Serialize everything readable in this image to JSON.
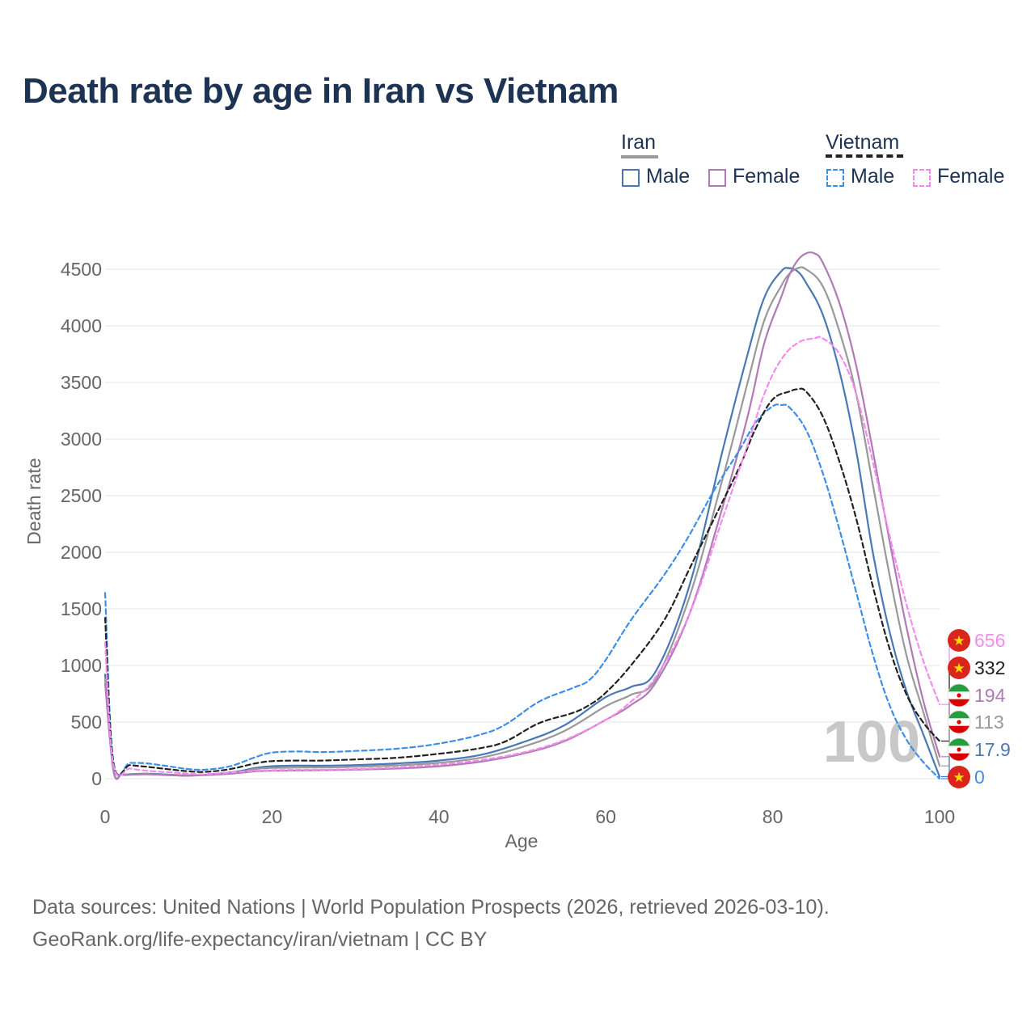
{
  "title": "Death rate by age in Iran vs Vietnam",
  "legend": {
    "groups": [
      {
        "name": "Iran",
        "line_color": "#999999",
        "dashed": false
      },
      {
        "name": "Vietnam",
        "line_color": "#222222",
        "dashed": true
      }
    ],
    "items": [
      {
        "label": "Male",
        "group": "Iran",
        "color": "#4a78b5",
        "dashed": false
      },
      {
        "label": "Female",
        "group": "Iran",
        "color": "#b07ab5",
        "dashed": false
      },
      {
        "label": "Male",
        "group": "Vietnam",
        "color": "#3d8fe6",
        "dashed": true
      },
      {
        "label": "Female",
        "group": "Vietnam",
        "color": "#f48cf0",
        "dashed": true
      }
    ]
  },
  "chart_data": {
    "type": "line",
    "title": "Death rate by age in Iran vs Vietnam",
    "xlabel": "Age",
    "ylabel": "Death rate",
    "xlim": [
      0,
      100
    ],
    "ylim": [
      0,
      4700
    ],
    "xticks": [
      0,
      20,
      40,
      60,
      80,
      100
    ],
    "yticks": [
      0,
      500,
      1000,
      1500,
      2000,
      2500,
      3000,
      3500,
      4000,
      4500
    ],
    "grid": true,
    "watermark": "100",
    "series": [
      {
        "name": "Iran Male",
        "color": "#4a78b5",
        "dashed": false,
        "width": 2.2,
        "points": [
          [
            0,
            920
          ],
          [
            1,
            80
          ],
          [
            2,
            40
          ],
          [
            3,
            40
          ],
          [
            5,
            45
          ],
          [
            8,
            35
          ],
          [
            10,
            30
          ],
          [
            13,
            40
          ],
          [
            16,
            65
          ],
          [
            18,
            95
          ],
          [
            20,
            110
          ],
          [
            23,
            115
          ],
          [
            26,
            115
          ],
          [
            30,
            120
          ],
          [
            35,
            135
          ],
          [
            40,
            160
          ],
          [
            45,
            210
          ],
          [
            50,
            320
          ],
          [
            55,
            470
          ],
          [
            60,
            720
          ],
          [
            63,
            810
          ],
          [
            66,
            950
          ],
          [
            70,
            1700
          ],
          [
            74,
            2900
          ],
          [
            77,
            3750
          ],
          [
            79,
            4250
          ],
          [
            81,
            4480
          ],
          [
            82,
            4510
          ],
          [
            83,
            4480
          ],
          [
            84,
            4380
          ],
          [
            86,
            4100
          ],
          [
            88,
            3600
          ],
          [
            90,
            2900
          ],
          [
            92,
            2000
          ],
          [
            94,
            1300
          ],
          [
            96,
            780
          ],
          [
            98,
            400
          ],
          [
            100,
            18
          ]
        ]
      },
      {
        "name": "Iran Both",
        "color": "#999999",
        "dashed": false,
        "width": 2.2,
        "points": [
          [
            0,
            880
          ],
          [
            1,
            75
          ],
          [
            2,
            38
          ],
          [
            3,
            38
          ],
          [
            5,
            42
          ],
          [
            8,
            32
          ],
          [
            10,
            28
          ],
          [
            13,
            38
          ],
          [
            16,
            58
          ],
          [
            18,
            85
          ],
          [
            20,
            95
          ],
          [
            23,
            98
          ],
          [
            26,
            100
          ],
          [
            30,
            105
          ],
          [
            35,
            118
          ],
          [
            40,
            140
          ],
          [
            45,
            185
          ],
          [
            50,
            280
          ],
          [
            55,
            420
          ],
          [
            60,
            640
          ],
          [
            63,
            740
          ],
          [
            66,
            880
          ],
          [
            70,
            1600
          ],
          [
            74,
            2650
          ],
          [
            77,
            3500
          ],
          [
            79,
            4050
          ],
          [
            81,
            4350
          ],
          [
            82,
            4460
          ],
          [
            83,
            4510
          ],
          [
            84,
            4500
          ],
          [
            86,
            4350
          ],
          [
            88,
            3950
          ],
          [
            90,
            3400
          ],
          [
            92,
            2600
          ],
          [
            94,
            1800
          ],
          [
            96,
            1100
          ],
          [
            98,
            600
          ],
          [
            100,
            113
          ]
        ]
      },
      {
        "name": "Iran Female",
        "color": "#b07ab5",
        "dashed": false,
        "width": 2.2,
        "points": [
          [
            0,
            840
          ],
          [
            1,
            70
          ],
          [
            2,
            35
          ],
          [
            3,
            35
          ],
          [
            5,
            38
          ],
          [
            8,
            30
          ],
          [
            10,
            26
          ],
          [
            13,
            35
          ],
          [
            16,
            50
          ],
          [
            18,
            65
          ],
          [
            20,
            70
          ],
          [
            23,
            72
          ],
          [
            26,
            75
          ],
          [
            30,
            80
          ],
          [
            35,
            90
          ],
          [
            40,
            110
          ],
          [
            45,
            150
          ],
          [
            50,
            220
          ],
          [
            55,
            330
          ],
          [
            60,
            520
          ],
          [
            63,
            650
          ],
          [
            66,
            850
          ],
          [
            70,
            1450
          ],
          [
            74,
            2400
          ],
          [
            77,
            3200
          ],
          [
            79,
            3850
          ],
          [
            81,
            4250
          ],
          [
            82,
            4450
          ],
          [
            83,
            4580
          ],
          [
            84,
            4640
          ],
          [
            85,
            4640
          ],
          [
            86,
            4560
          ],
          [
            88,
            4200
          ],
          [
            90,
            3650
          ],
          [
            92,
            2900
          ],
          [
            94,
            2100
          ],
          [
            96,
            1350
          ],
          [
            98,
            700
          ],
          [
            100,
            194
          ]
        ]
      },
      {
        "name": "Vietnam Male",
        "color": "#3d8fe6",
        "dashed": true,
        "width": 2.2,
        "points": [
          [
            0,
            1640
          ],
          [
            1,
            150
          ],
          [
            3,
            140
          ],
          [
            5,
            135
          ],
          [
            8,
            105
          ],
          [
            10,
            85
          ],
          [
            12,
            80
          ],
          [
            15,
            110
          ],
          [
            18,
            190
          ],
          [
            20,
            230
          ],
          [
            23,
            240
          ],
          [
            26,
            235
          ],
          [
            30,
            245
          ],
          [
            35,
            265
          ],
          [
            40,
            310
          ],
          [
            45,
            390
          ],
          [
            48,
            480
          ],
          [
            52,
            680
          ],
          [
            56,
            800
          ],
          [
            58,
            870
          ],
          [
            60,
            1050
          ],
          [
            63,
            1400
          ],
          [
            67,
            1800
          ],
          [
            70,
            2150
          ],
          [
            73,
            2550
          ],
          [
            76,
            2900
          ],
          [
            78,
            3150
          ],
          [
            80,
            3290
          ],
          [
            81,
            3300
          ],
          [
            82,
            3280
          ],
          [
            84,
            3080
          ],
          [
            86,
            2700
          ],
          [
            88,
            2200
          ],
          [
            90,
            1650
          ],
          [
            92,
            1100
          ],
          [
            94,
            650
          ],
          [
            96,
            350
          ],
          [
            98,
            150
          ],
          [
            100,
            0
          ]
        ]
      },
      {
        "name": "Vietnam Both",
        "color": "#222222",
        "dashed": true,
        "width": 2.2,
        "points": [
          [
            0,
            1420
          ],
          [
            1,
            140
          ],
          [
            3,
            120
          ],
          [
            5,
            105
          ],
          [
            8,
            80
          ],
          [
            10,
            65
          ],
          [
            12,
            60
          ],
          [
            15,
            85
          ],
          [
            18,
            135
          ],
          [
            20,
            155
          ],
          [
            23,
            160
          ],
          [
            26,
            160
          ],
          [
            30,
            170
          ],
          [
            35,
            185
          ],
          [
            40,
            220
          ],
          [
            45,
            270
          ],
          [
            48,
            330
          ],
          [
            52,
            490
          ],
          [
            56,
            580
          ],
          [
            58,
            650
          ],
          [
            60,
            760
          ],
          [
            63,
            1000
          ],
          [
            67,
            1400
          ],
          [
            70,
            1850
          ],
          [
            73,
            2300
          ],
          [
            76,
            2750
          ],
          [
            78,
            3100
          ],
          [
            80,
            3350
          ],
          [
            82,
            3420
          ],
          [
            83,
            3440
          ],
          [
            84,
            3420
          ],
          [
            86,
            3200
          ],
          [
            88,
            2800
          ],
          [
            90,
            2300
          ],
          [
            92,
            1700
          ],
          [
            94,
            1150
          ],
          [
            96,
            750
          ],
          [
            98,
            500
          ],
          [
            100,
            332
          ]
        ]
      },
      {
        "name": "Vietnam Female",
        "color": "#f48cf0",
        "dashed": true,
        "width": 2.2,
        "points": [
          [
            0,
            1200
          ],
          [
            1,
            120
          ],
          [
            3,
            90
          ],
          [
            5,
            70
          ],
          [
            8,
            55
          ],
          [
            10,
            45
          ],
          [
            12,
            40
          ],
          [
            15,
            55
          ],
          [
            18,
            70
          ],
          [
            20,
            75
          ],
          [
            23,
            78
          ],
          [
            26,
            80
          ],
          [
            30,
            85
          ],
          [
            35,
            100
          ],
          [
            40,
            125
          ],
          [
            45,
            165
          ],
          [
            50,
            230
          ],
          [
            55,
            340
          ],
          [
            60,
            520
          ],
          [
            63,
            680
          ],
          [
            66,
            900
          ],
          [
            70,
            1450
          ],
          [
            74,
            2300
          ],
          [
            77,
            2950
          ],
          [
            79,
            3400
          ],
          [
            81,
            3700
          ],
          [
            83,
            3850
          ],
          [
            85,
            3890
          ],
          [
            86,
            3890
          ],
          [
            88,
            3750
          ],
          [
            90,
            3400
          ],
          [
            92,
            2800
          ],
          [
            94,
            2150
          ],
          [
            96,
            1550
          ],
          [
            98,
            1050
          ],
          [
            100,
            656
          ]
        ]
      }
    ],
    "end_labels": [
      {
        "value": "656",
        "color": "#f48cf0",
        "country": "Vietnam"
      },
      {
        "value": "332",
        "color": "#222222",
        "country": "Vietnam"
      },
      {
        "value": "194",
        "color": "#b07ab5",
        "country": "Iran"
      },
      {
        "value": "113",
        "color": "#999999",
        "country": "Iran"
      },
      {
        "value": "17.9",
        "color": "#4a78b5",
        "country": "Iran"
      },
      {
        "value": "0",
        "color": "#3d8fe6",
        "country": "Vietnam"
      }
    ]
  },
  "footer": {
    "line1": "Data sources: United Nations | World Population Prospects (2026, retrieved 2026-03-10).",
    "line2": "GeoRank.org/life-expectancy/iran/vietnam | CC BY"
  }
}
